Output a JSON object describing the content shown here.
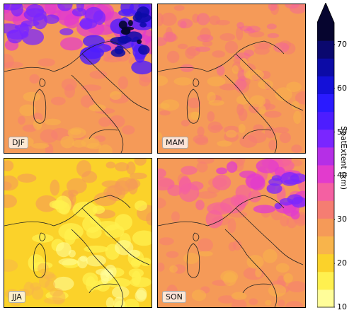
{
  "colorbar": {
    "label": "SpatExtent (km)",
    "ticks": [
      "10",
      "20",
      "30",
      "40",
      "50",
      "60",
      "70"
    ],
    "tick_values": [
      10,
      20,
      30,
      40,
      50,
      60,
      70
    ],
    "vmin": 10,
    "vmax": 75,
    "colors": [
      "#fffd99",
      "#fff04f",
      "#fbd22a",
      "#f8b44b",
      "#f59a58",
      "#f57d72",
      "#f460a2",
      "#e23bcd",
      "#b52fe6",
      "#7a26ff",
      "#4d1dff",
      "#2a1aff",
      "#1410d8",
      "#0c0ba6",
      "#0a086e",
      "#06052f"
    ]
  },
  "panels": [
    {
      "season": "DJF"
    },
    {
      "season": "MAM"
    },
    {
      "season": "JJA"
    },
    {
      "season": "SON"
    }
  ]
}
